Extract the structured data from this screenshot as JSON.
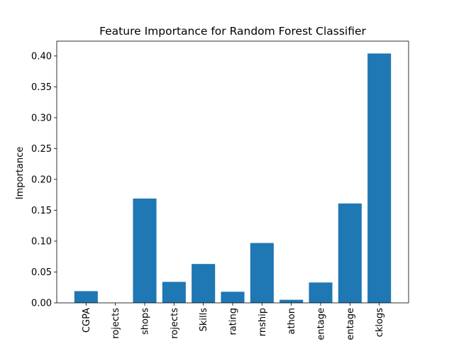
{
  "chart_data": {
    "type": "bar",
    "title": "Feature Importance for Random Forest Classifier",
    "xlabel": "",
    "ylabel": "Importance",
    "categories": [
      "CGPA",
      "rojects",
      "shops",
      "rojects",
      "Skills",
      "rating",
      "rnship",
      "athon",
      "entage",
      "entage",
      "cklogs"
    ],
    "values": [
      0.019,
      0.0,
      0.169,
      0.034,
      0.063,
      0.018,
      0.097,
      0.005,
      0.033,
      0.161,
      0.404
    ],
    "ylim": [
      0,
      0.424
    ],
    "yticks": [
      "0.00",
      "0.05",
      "0.10",
      "0.15",
      "0.20",
      "0.25",
      "0.30",
      "0.35",
      "0.40"
    ],
    "ytick_values": [
      0,
      0.05,
      0.1,
      0.15,
      0.2,
      0.25,
      0.3,
      0.35,
      0.4
    ],
    "bar_color": "#1f77b4",
    "grid": false,
    "legend": false
  }
}
